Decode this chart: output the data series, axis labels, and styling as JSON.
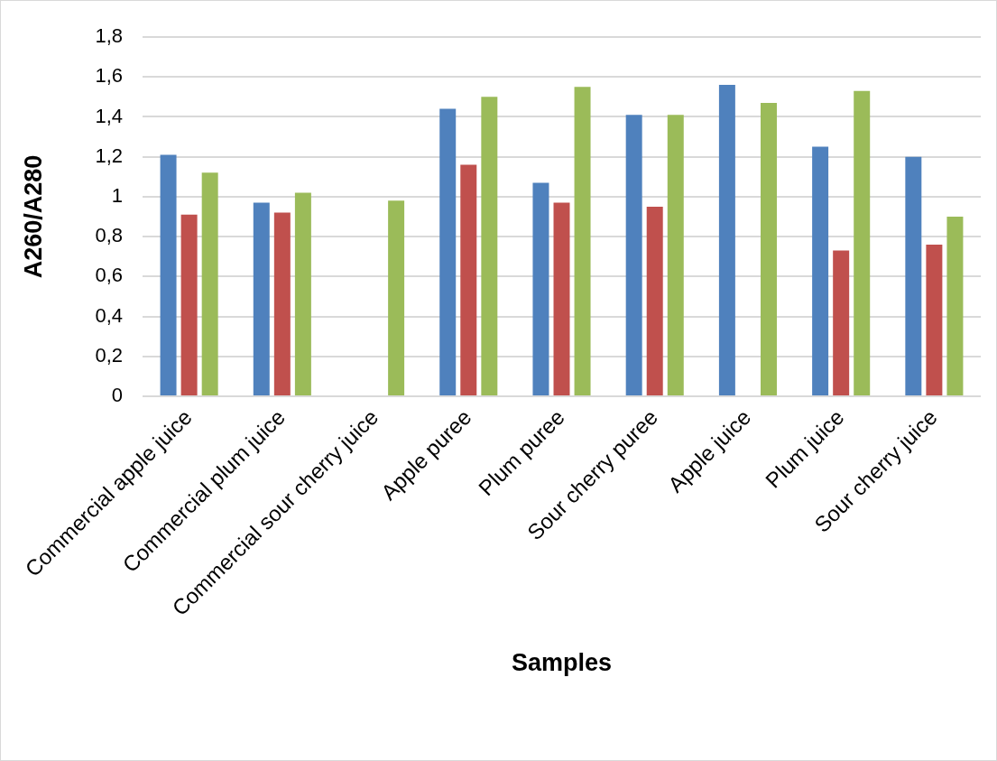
{
  "chart_data": {
    "type": "bar",
    "xlabel": "Samples",
    "ylabel": "A260/A280",
    "categories": [
      "Commercial apple juice",
      "Commercial plum juice",
      "Commercial sour cherry juice",
      "Apple puree",
      "Plum puree",
      "Sour cherry puree",
      "Apple juice",
      "Plum juice",
      "Sour cherry juice"
    ],
    "series": [
      {
        "color": "#4f81bd",
        "values": [
          1.21,
          0.97,
          null,
          1.44,
          1.07,
          1.41,
          1.56,
          1.25,
          1.2
        ]
      },
      {
        "color": "#c0504d",
        "values": [
          0.91,
          0.92,
          null,
          1.16,
          0.97,
          0.95,
          null,
          0.73,
          0.76
        ]
      },
      {
        "color": "#9bbb59",
        "values": [
          1.12,
          1.02,
          0.98,
          1.5,
          1.55,
          1.41,
          1.47,
          1.53,
          0.9
        ]
      }
    ],
    "ylim": [
      0,
      1.8
    ],
    "yticks": [
      0,
      {
        "value": 0.2,
        "label": "0,2"
      },
      {
        "value": 0.4,
        "label": "0,4"
      },
      {
        "value": 0.6,
        "label": "0,6"
      },
      {
        "value": 0.8,
        "label": "0,8"
      },
      1,
      {
        "value": 1.2,
        "label": "1,2"
      },
      {
        "value": 1.4,
        "label": "1,4"
      },
      {
        "value": 1.6,
        "label": "1,6"
      },
      {
        "value": 1.8,
        "label": "1,8"
      }
    ],
    "grid": "y",
    "legend": false
  }
}
